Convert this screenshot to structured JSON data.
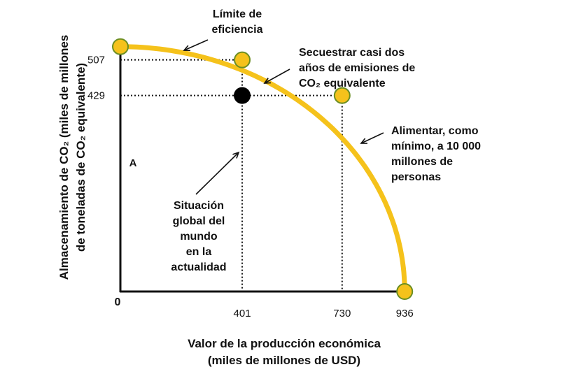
{
  "chart_data": {
    "type": "line",
    "title": "",
    "xlabel_lines": [
      "Valor de la producción económica",
      "(miles de millones de USD)"
    ],
    "ylabel_lines": [
      "Almacenamiento de CO₂ (miles de millones",
      "de toneladas de CO₂ equivalente)"
    ],
    "origin_label": "0",
    "x_ticks": [
      "401",
      "730",
      "936"
    ],
    "y_ticks": [
      "507",
      "429"
    ],
    "xlim": [
      0,
      936
    ],
    "ylim": [
      0,
      536
    ],
    "series": [
      {
        "curve": "frontier",
        "x": [
          0,
          200,
          401,
          600,
          730,
          850,
          936
        ],
        "y": [
          536,
          528,
          507,
          467,
          429,
          323,
          0
        ]
      }
    ],
    "points": [
      {
        "key": "y_intercept",
        "x": 0,
        "y": 536,
        "style": "frontier"
      },
      {
        "key": "sequester",
        "x": 401,
        "y": 507,
        "style": "frontier"
      },
      {
        "key": "feed",
        "x": 730,
        "y": 429,
        "style": "frontier"
      },
      {
        "key": "x_intercept",
        "x": 936,
        "y": 0,
        "style": "frontier"
      },
      {
        "key": "current",
        "x": 401,
        "y": 429,
        "style": "current"
      }
    ],
    "annotations": {
      "frontier": [
        "Límite de",
        "eficiencia"
      ],
      "sequester": [
        "Secuestrar casi dos",
        "años de emisiones de",
        "CO₂ equivalente"
      ],
      "feed": [
        "Alimentar, como",
        "mínimo, a 10 000",
        "millones de",
        "personas"
      ],
      "current": [
        "Situación",
        "global del",
        "mundo",
        "en la",
        "actualidad"
      ],
      "point_a": "A"
    },
    "colors": {
      "frontier": "#f5c21b",
      "marker_fill": "#f5c21b",
      "marker_edge": "#6b8e23",
      "current_point": "#000000",
      "axis": "#111111"
    },
    "grid": false,
    "legend": "none"
  }
}
